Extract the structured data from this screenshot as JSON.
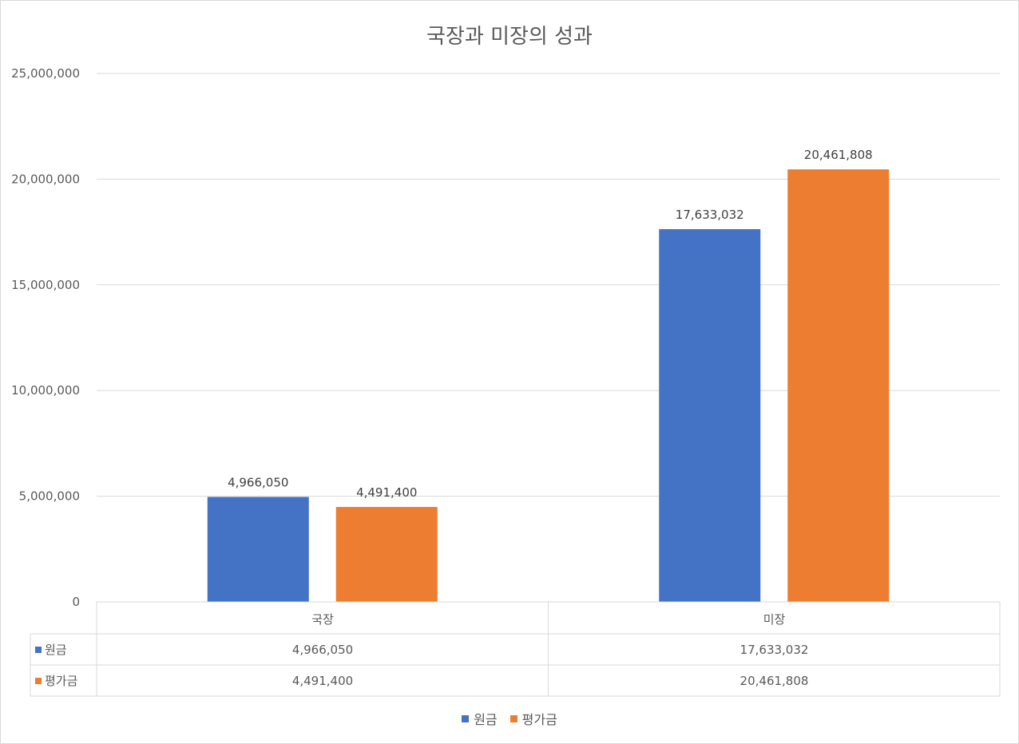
{
  "chart_data": {
    "type": "bar",
    "title": "국장과 미장의 성과",
    "categories": [
      "국장",
      "미장"
    ],
    "series": [
      {
        "name": "원금",
        "color": "#4472C4",
        "values": [
          4966050,
          17633032
        ],
        "labels": [
          "4,966,050",
          "17,633,032"
        ]
      },
      {
        "name": "평가금",
        "color": "#ED7D31",
        "values": [
          4491400,
          20461808
        ],
        "labels": [
          "4,491,400",
          "20,461,808"
        ]
      }
    ],
    "ylim": [
      0,
      25000000
    ],
    "yticks": [
      0,
      5000000,
      10000000,
      15000000,
      20000000,
      25000000
    ],
    "ytick_labels": [
      "0",
      "5,000,000",
      "10,000,000",
      "15,000,000",
      "20,000,000",
      "25,000,000"
    ],
    "grid": true,
    "legend": "bottom",
    "data_table": true
  }
}
